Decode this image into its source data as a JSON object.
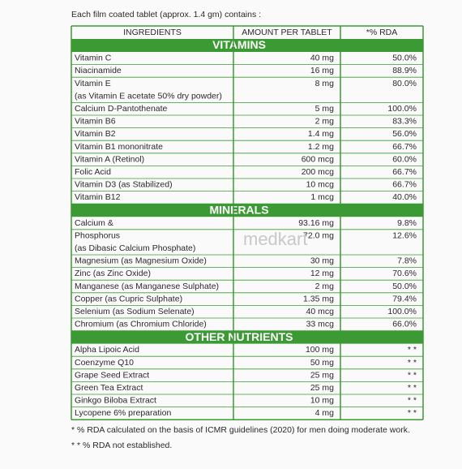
{
  "intro": "Each film coated tablet (approx. 1.4 gm) contains :",
  "table": {
    "headers": [
      "INGREDIENTS",
      "AMOUNT PER TABLET",
      "*% RDA"
    ],
    "sections": [
      {
        "title": "VITAMINS",
        "rows": [
          {
            "ingredient": [
              "Vitamin C"
            ],
            "amount": "40 mg",
            "rda": "50.0%"
          },
          {
            "ingredient": [
              "Niacinamide"
            ],
            "amount": "16 mg",
            "rda": "88.9%"
          },
          {
            "ingredient": [
              "Vitamin E",
              "(as Vitamin E acetate 50% dry powder)"
            ],
            "amount": "8 mg",
            "rda": "80.0%"
          },
          {
            "ingredient": [
              "Calcium D-Pantothenate"
            ],
            "amount": "5 mg",
            "rda": "100.0%"
          },
          {
            "ingredient": [
              "Vitamin B6"
            ],
            "amount": "2 mg",
            "rda": "83.3%"
          },
          {
            "ingredient": [
              "Vitamin B2"
            ],
            "amount": "1.4 mg",
            "rda": "56.0%"
          },
          {
            "ingredient": [
              "Vitamin B1 mononitrate"
            ],
            "amount": "1.2 mg",
            "rda": "66.7%"
          },
          {
            "ingredient": [
              "Vitamin A (Retinol)"
            ],
            "amount": "600 mcg",
            "rda": "60.0%"
          },
          {
            "ingredient": [
              "Folic Acid"
            ],
            "amount": "200 mcg",
            "rda": "66.7%"
          },
          {
            "ingredient": [
              "Vitamin D3 (as Stabilized)"
            ],
            "amount": "10 mcg",
            "rda": "66.7%"
          },
          {
            "ingredient": [
              "Vitamin B12"
            ],
            "amount": "1 mcg",
            "rda": "40.0%"
          }
        ]
      },
      {
        "title": "MINERALS",
        "rows": [
          {
            "ingredient": [
              "Calcium &"
            ],
            "amount": "93.16 mg",
            "rda": "9.8%"
          },
          {
            "ingredient": [
              "Phosphorus",
              "(as Dibasic Calcium Phosphate)"
            ],
            "amount": "72.0 mg",
            "rda": "12.6%"
          },
          {
            "ingredient": [
              "Magnesium (as Magnesium Oxide)"
            ],
            "amount": "30 mg",
            "rda": "7.8%"
          },
          {
            "ingredient": [
              "Zinc (as Zinc Oxide)"
            ],
            "amount": "12 mg",
            "rda": "70.6%"
          },
          {
            "ingredient": [
              "Manganese (as Manganese Sulphate)"
            ],
            "amount": "2 mg",
            "rda": "50.0%"
          },
          {
            "ingredient": [
              "Copper (as Cupric Sulphate)"
            ],
            "amount": "1.35 mg",
            "rda": "79.4%"
          },
          {
            "ingredient": [
              "Selenium (as Sodium Selenate)"
            ],
            "amount": "40 mcg",
            "rda": "100.0%"
          },
          {
            "ingredient": [
              "Chromium (as Chromium Chloride)"
            ],
            "amount": "33 mcg",
            "rda": "66.0%"
          }
        ]
      },
      {
        "title": "OTHER NUTRIENTS",
        "rows": [
          {
            "ingredient": [
              "Alpha Lipoic Acid"
            ],
            "amount": "100 mg",
            "rda": "* *"
          },
          {
            "ingredient": [
              "Coenzyme Q10"
            ],
            "amount": "50 mg",
            "rda": "* *"
          },
          {
            "ingredient": [
              "Grape Seed Extract"
            ],
            "amount": "25 mg",
            "rda": "* *"
          },
          {
            "ingredient": [
              "Green Tea Extract"
            ],
            "amount": "25 mg",
            "rda": "* *"
          },
          {
            "ingredient": [
              "Ginkgo Biloba Extract"
            ],
            "amount": "10 mg",
            "rda": "* *"
          },
          {
            "ingredient": [
              "Lycopene 6% preparation"
            ],
            "amount": "4 mg",
            "rda": "* *"
          }
        ]
      }
    ]
  },
  "watermark": "medkart",
  "footnotes": [
    "* % RDA calculated on the basis of ICMR guidelines (2020) for men doing moderate work.",
    "* * % RDA not established."
  ]
}
